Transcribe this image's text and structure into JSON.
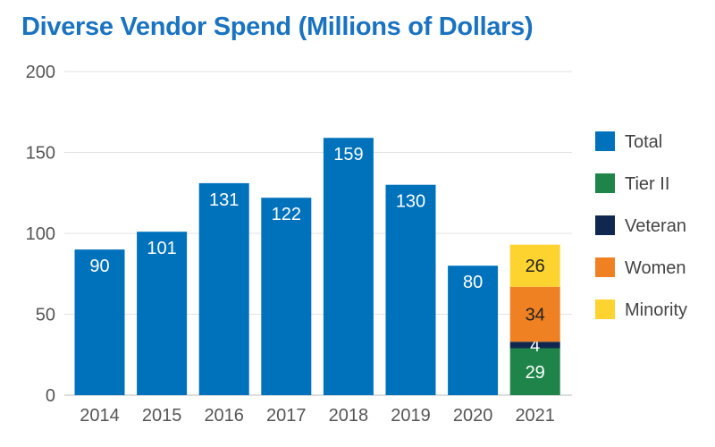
{
  "chart_data": {
    "type": "bar",
    "title": "Diverse Vendor Spend (Millions of Dollars)",
    "xlabel": "",
    "ylabel": "",
    "ylim": [
      0,
      200
    ],
    "yticks": [
      0,
      50,
      100,
      150,
      200
    ],
    "grid": true,
    "legend_position": "right",
    "categories": [
      "2014",
      "2015",
      "2016",
      "2017",
      "2018",
      "2019",
      "2020",
      "2021"
    ],
    "series": [
      {
        "name": "Total",
        "color": "#0072bc",
        "values": [
          90,
          101,
          131,
          122,
          159,
          130,
          80,
          null
        ]
      },
      {
        "name": "Tier II",
        "color": "#1e8449",
        "values": [
          null,
          null,
          null,
          null,
          null,
          null,
          null,
          29
        ]
      },
      {
        "name": "Veteran",
        "color": "#10284f",
        "values": [
          null,
          null,
          null,
          null,
          null,
          null,
          null,
          4
        ]
      },
      {
        "name": "Women",
        "color": "#f08122",
        "values": [
          null,
          null,
          null,
          null,
          null,
          null,
          null,
          34
        ]
      },
      {
        "name": "Minority",
        "color": "#fdd330",
        "values": [
          null,
          null,
          null,
          null,
          null,
          null,
          null,
          26
        ]
      }
    ],
    "stacked_order": [
      "Tier II",
      "Veteran",
      "Women",
      "Minority"
    ],
    "label_colors": {
      "Total": "#ffffff",
      "Tier II": "#ffffff",
      "Veteran": "#ffffff",
      "Women": "#222222",
      "Minority": "#222222"
    }
  }
}
